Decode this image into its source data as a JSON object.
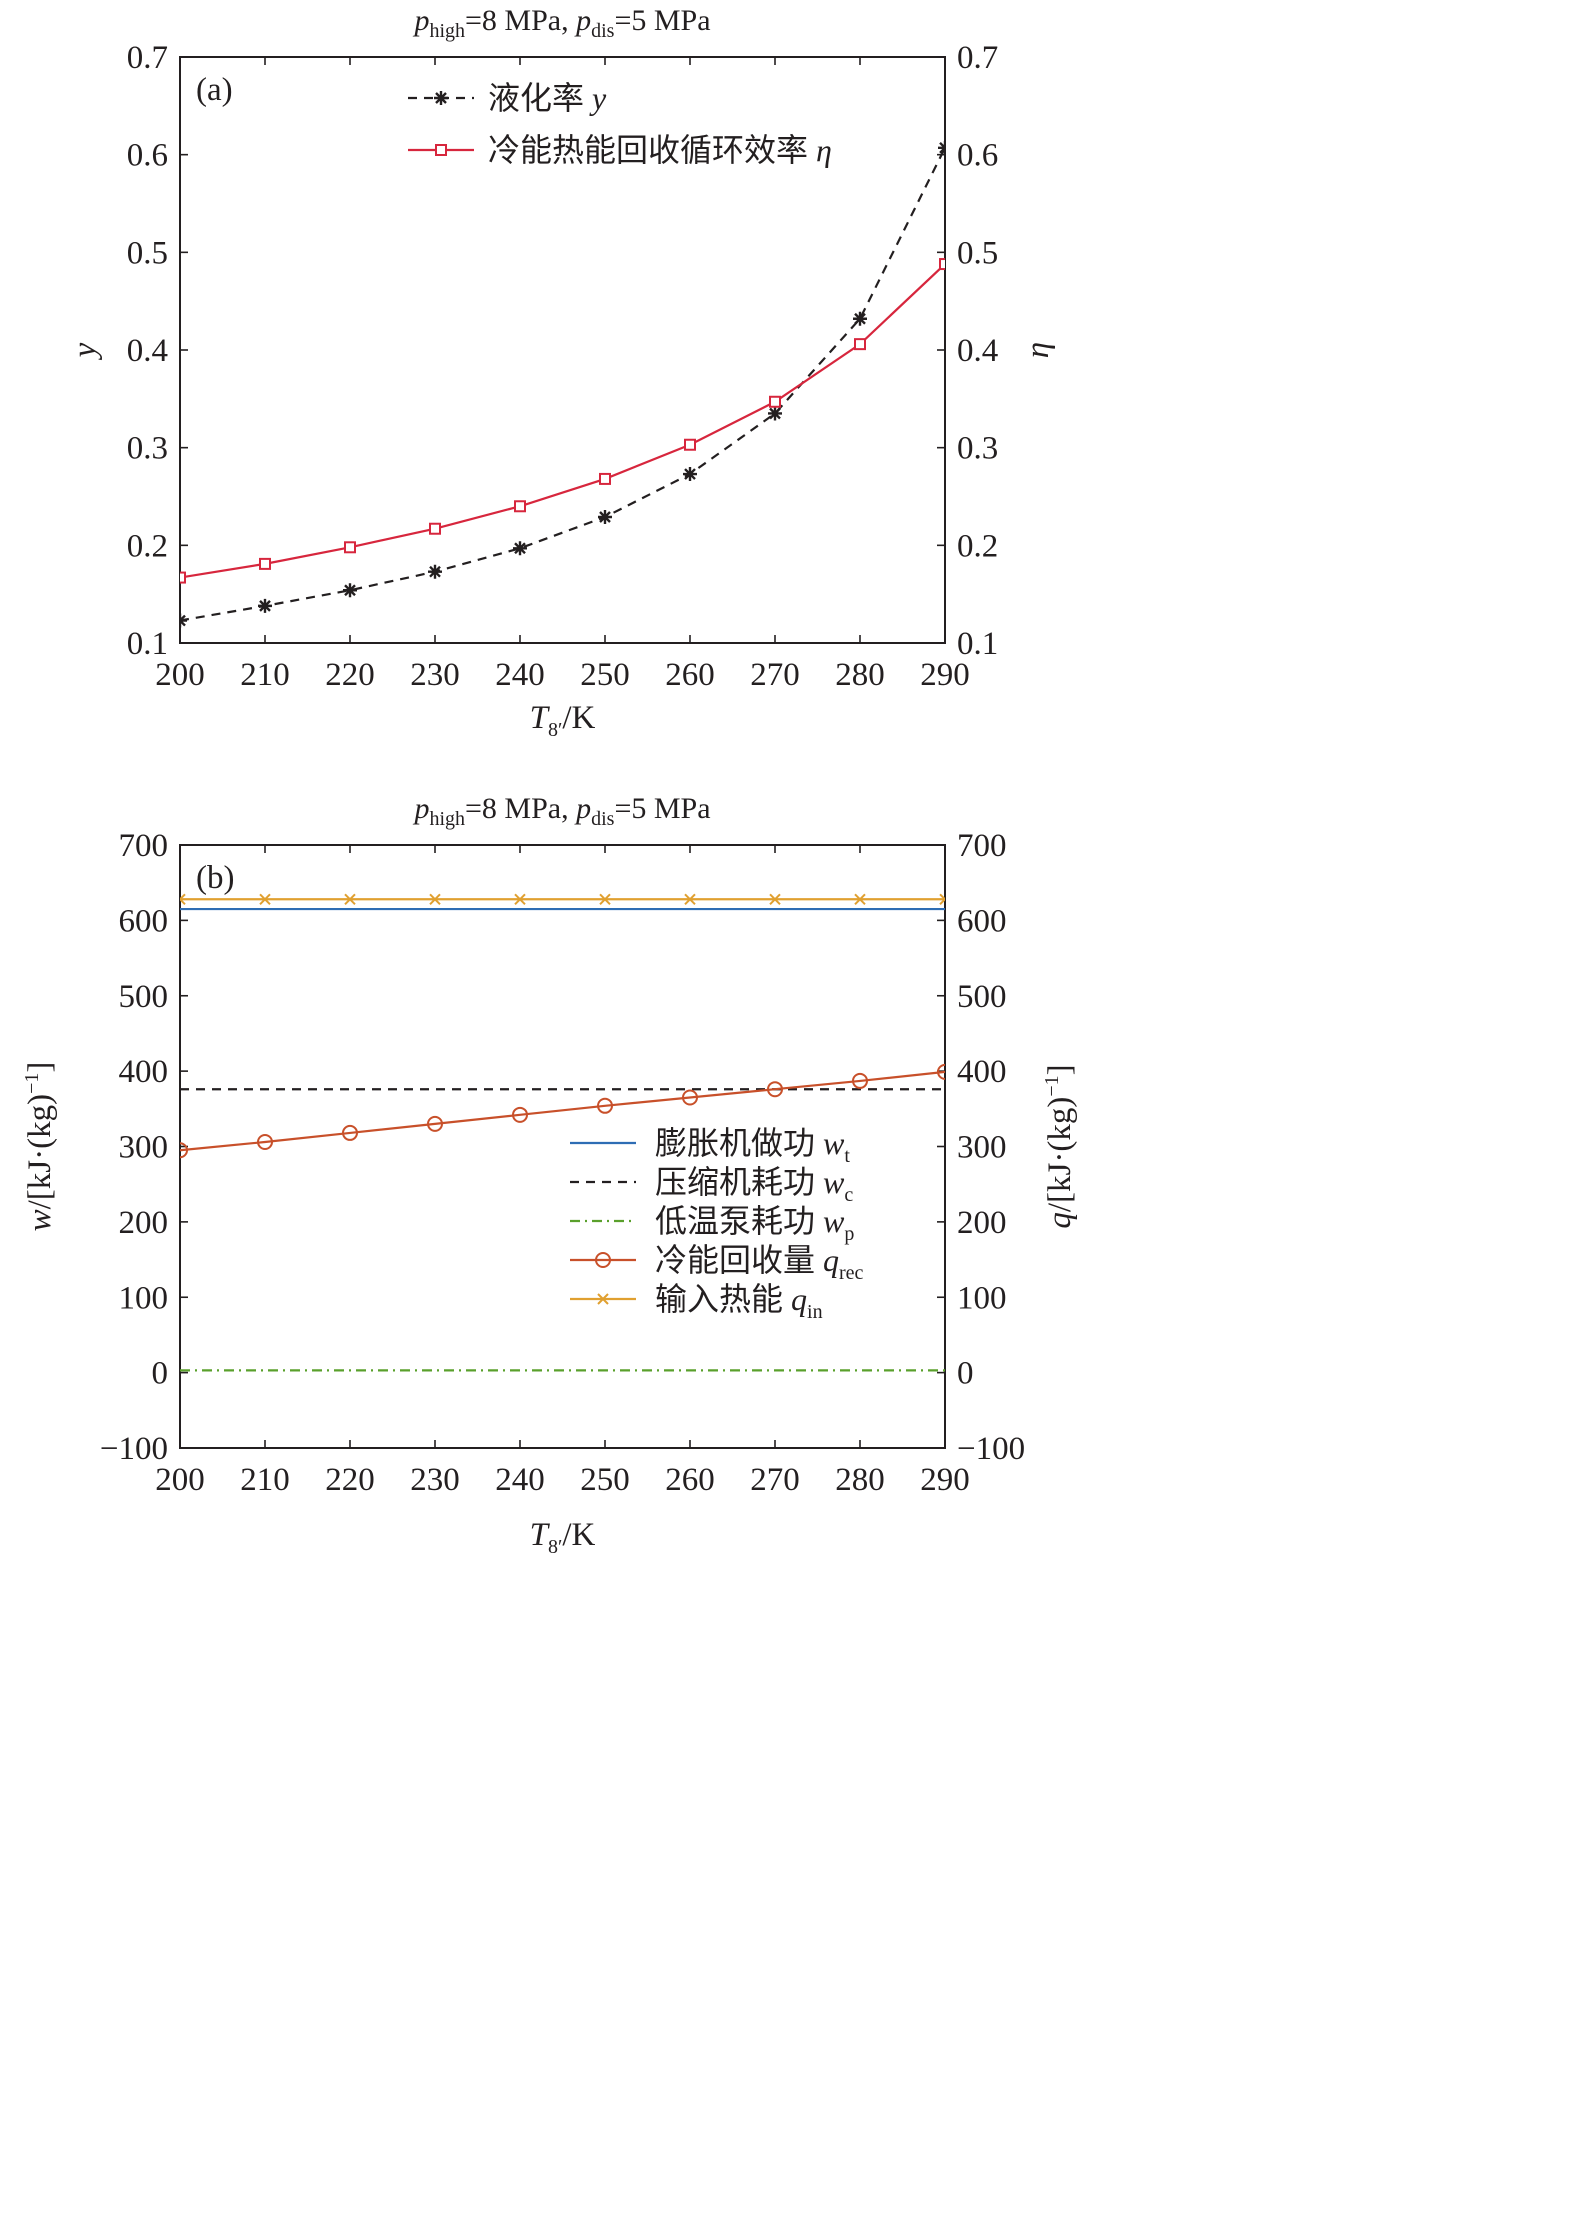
{
  "chart_data": [
    {
      "type": "line",
      "panel_label": "(a)",
      "title": {
        "p1": "p",
        "p1_sub": "high",
        "p1_rest": "=8 MPa, ",
        "p2": "p",
        "p2_sub": "dis",
        "p2_rest": "=5 MPa"
      },
      "xlabel": {
        "var": "T",
        "sub": "8′",
        "unit": "/K"
      },
      "ylabel_left": "y",
      "ylabel_right": "η",
      "x": [
        200,
        210,
        220,
        230,
        240,
        250,
        260,
        270,
        280,
        290
      ],
      "xlim": [
        200,
        290
      ],
      "ylim": [
        0.1,
        0.7
      ],
      "x_ticks": [
        "200",
        "210",
        "220",
        "230",
        "240",
        "250",
        "260",
        "270",
        "280",
        "290"
      ],
      "y_ticks": [
        "0.1",
        "0.2",
        "0.3",
        "0.4",
        "0.5",
        "0.6",
        "0.7"
      ],
      "legend_position": "top-center",
      "series": [
        {
          "name": "液化率",
          "name_var": "y",
          "color": "#231f20",
          "line_style": "dashed",
          "marker": "asterisk",
          "values": [
            0.123,
            0.138,
            0.154,
            0.173,
            0.197,
            0.229,
            0.273,
            0.335,
            0.432,
            0.607
          ]
        },
        {
          "name": "冷能热能回收循环效率",
          "name_var": "η",
          "color": "#d7263d",
          "line_style": "solid",
          "marker": "square",
          "values": [
            0.167,
            0.181,
            0.198,
            0.217,
            0.24,
            0.268,
            0.303,
            0.347,
            0.406,
            0.488
          ]
        }
      ]
    },
    {
      "type": "line",
      "panel_label": "(b)",
      "title": {
        "p1": "p",
        "p1_sub": "high",
        "p1_rest": "=8 MPa, ",
        "p2": "p",
        "p2_sub": "dis",
        "p2_rest": "=5 MPa"
      },
      "xlabel": {
        "var": "T",
        "sub": "8′",
        "unit": "/K"
      },
      "ylabel_left": {
        "var": "w",
        "rest": "/[kJ·(kg)",
        "sup": "−1",
        "end": "]"
      },
      "ylabel_right": {
        "var": "q",
        "rest": "/[kJ·(kg)",
        "sup": "−1",
        "end": "]"
      },
      "x": [
        200,
        210,
        220,
        230,
        240,
        250,
        260,
        270,
        280,
        290
      ],
      "xlim": [
        200,
        290
      ],
      "ylim": [
        -100,
        700
      ],
      "x_ticks": [
        "200",
        "210",
        "220",
        "230",
        "240",
        "250",
        "260",
        "270",
        "280",
        "290"
      ],
      "y_ticks": [
        "−100",
        "0",
        "100",
        "200",
        "300",
        "400",
        "500",
        "600",
        "700"
      ],
      "legend_position": "center-right",
      "series": [
        {
          "name": "膨胀机做功",
          "name_var": "w",
          "name_sub": "t",
          "color": "#2e6db4",
          "line_style": "solid",
          "marker": "none",
          "values": [
            615,
            615,
            615,
            615,
            615,
            615,
            615,
            615,
            615,
            615
          ]
        },
        {
          "name": "压缩机耗功",
          "name_var": "w",
          "name_sub": "c",
          "color": "#231f20",
          "line_style": "dashed",
          "marker": "none",
          "values": [
            376,
            376,
            376,
            376,
            376,
            376,
            376,
            376,
            376,
            376
          ]
        },
        {
          "name": "低温泵耗功",
          "name_var": "w",
          "name_sub": "p",
          "color": "#5aa02c",
          "line_style": "dashdot",
          "marker": "none",
          "values": [
            3,
            3,
            3,
            3,
            3,
            3,
            3,
            3,
            3,
            3
          ]
        },
        {
          "name": "冷能回收量",
          "name_var": "q",
          "name_sub": "rec",
          "color": "#c8502a",
          "line_style": "solid",
          "marker": "circle",
          "values": [
            295,
            306,
            318,
            330,
            342,
            354,
            365,
            376,
            387,
            399
          ]
        },
        {
          "name": "输入热能",
          "name_var": "q",
          "name_sub": "in",
          "color": "#e0a030",
          "line_style": "solid",
          "marker": "x",
          "values": [
            628,
            628,
            628,
            628,
            628,
            628,
            628,
            628,
            628,
            628
          ]
        }
      ]
    }
  ]
}
